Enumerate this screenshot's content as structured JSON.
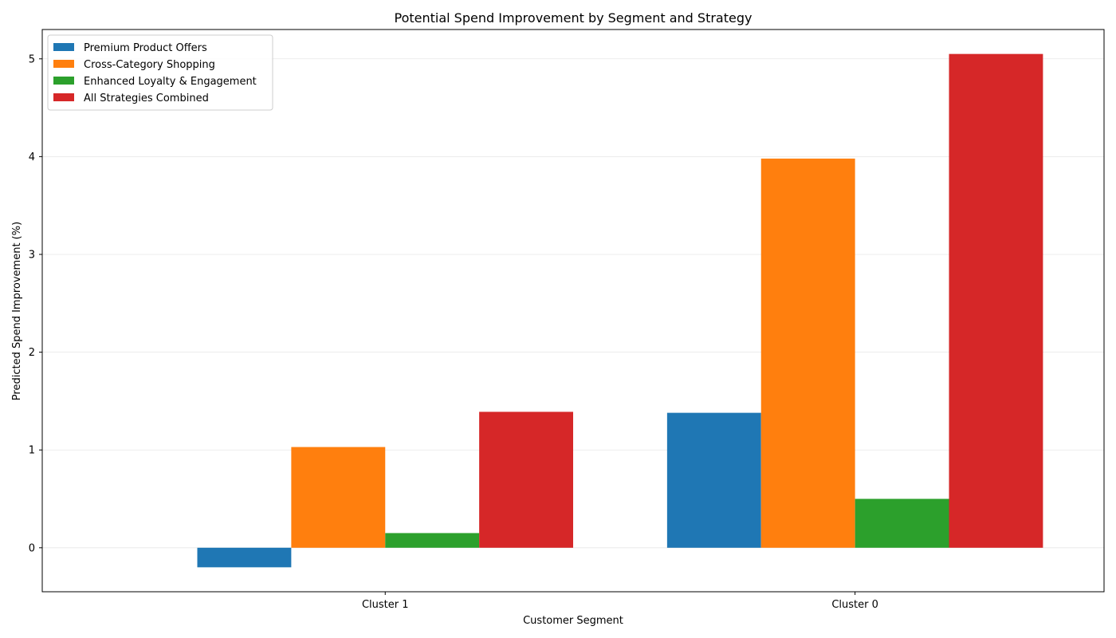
{
  "chart_data": {
    "type": "bar",
    "title": "Potential Spend Improvement by Segment and Strategy",
    "xlabel": "Customer Segment",
    "ylabel": "Predicted Spend Improvement (%)",
    "categories": [
      "Cluster 1",
      "Cluster 0"
    ],
    "series": [
      {
        "name": "Premium Product Offers",
        "color": "#1f77b4",
        "values": [
          -0.2,
          1.38
        ]
      },
      {
        "name": "Cross-Category Shopping",
        "color": "#ff7f0e",
        "values": [
          1.03,
          3.98
        ]
      },
      {
        "name": "Enhanced Loyalty & Engagement",
        "color": "#2ca02c",
        "values": [
          0.15,
          0.5
        ]
      },
      {
        "name": "All Strategies Combined",
        "color": "#d62728",
        "values": [
          1.39,
          5.05
        ]
      }
    ],
    "ylim": [
      -0.45,
      5.3
    ],
    "yticks": [
      0,
      1,
      2,
      3,
      4,
      5
    ],
    "grid": "y",
    "legend_position": "top-left"
  }
}
